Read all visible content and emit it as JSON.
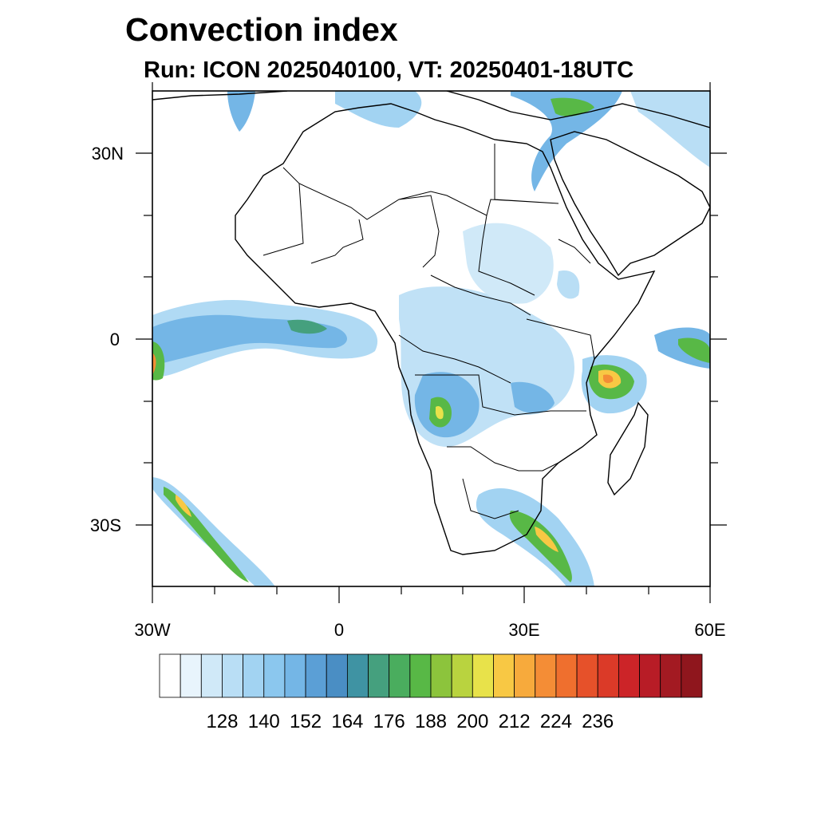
{
  "header": {
    "title": "Convection index",
    "subtitle": "Run: ICON 2025040100,  VT: 20250401-18UTC"
  },
  "axes": {
    "lon_labels": [
      "30W",
      "0",
      "30E",
      "60E"
    ],
    "lat_labels": [
      "30N",
      "0",
      "30S"
    ]
  },
  "chart_data": {
    "type": "heatmap",
    "title": "Convection index",
    "subtitle": "Run: ICON 2025040100,  VT: 20250401-18UTC",
    "xlim": [
      -30,
      60
    ],
    "ylim": [
      -40,
      40
    ],
    "x_ticks": [
      "30W",
      "0",
      "30E",
      "60E"
    ],
    "y_ticks": [
      "30N",
      "0",
      "30S"
    ],
    "colorbar": {
      "labels": [
        "128",
        "140",
        "152",
        "164",
        "176",
        "188",
        "200",
        "212",
        "224",
        "236"
      ],
      "colors": [
        "#ffffff",
        "#e8f4fc",
        "#d0e9f8",
        "#b9def5",
        "#a2d3f2",
        "#8bc7ee",
        "#74b6e6",
        "#5b9fd6",
        "#4a8ec4",
        "#3f93a3",
        "#45a07e",
        "#4aad5e",
        "#58b846",
        "#8cc43c",
        "#b9d33f",
        "#e8e24a",
        "#f8c844",
        "#f7aa3c",
        "#f48d36",
        "#ef6f2e",
        "#e6512a",
        "#db3a28",
        "#cc2428",
        "#b81c26",
        "#a31a22",
        "#8f161d"
      ]
    }
  }
}
